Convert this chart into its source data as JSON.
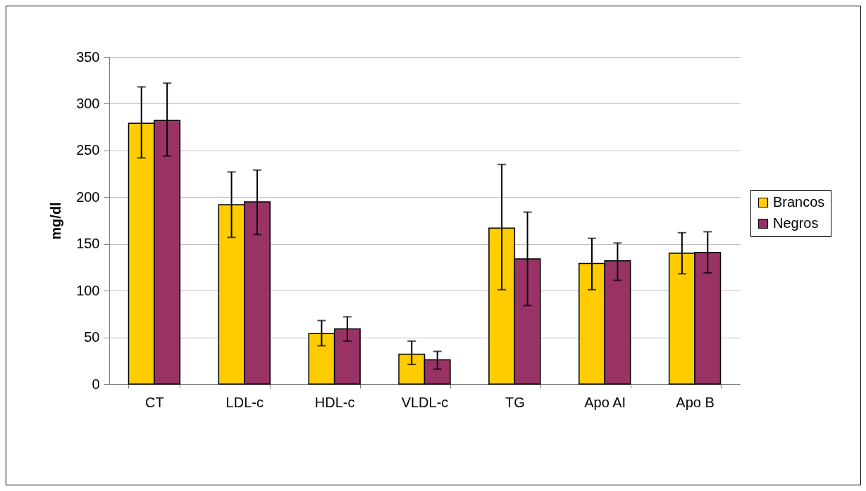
{
  "chart_data": {
    "type": "bar",
    "ylabel": "mg/dl",
    "categories": [
      "CT",
      "LDL-c",
      "HDL-c",
      "VLDL-c",
      "TG",
      "Apo AI",
      "Apo B"
    ],
    "series": [
      {
        "name": "Brancos",
        "color": "#ffcc00",
        "values": [
          279,
          192,
          54,
          32,
          167,
          129,
          140
        ],
        "errors": [
          [
            242,
            318
          ],
          [
            157,
            227
          ],
          [
            41,
            68
          ],
          [
            21,
            46
          ],
          [
            101,
            235
          ],
          [
            101,
            156
          ],
          [
            118,
            162
          ]
        ]
      },
      {
        "name": "Negros",
        "color": "#993366",
        "values": [
          282,
          195,
          59,
          26,
          134,
          132,
          141
        ],
        "errors": [
          [
            244,
            322
          ],
          [
            160,
            229
          ],
          [
            46,
            72
          ],
          [
            16,
            35
          ],
          [
            84,
            184
          ],
          [
            111,
            151
          ],
          [
            119,
            163
          ]
        ]
      }
    ],
    "ylim": [
      0,
      350
    ],
    "yticks": [
      0,
      50,
      100,
      150,
      200,
      250,
      300,
      350
    ],
    "grid": "y",
    "legend": "right"
  }
}
